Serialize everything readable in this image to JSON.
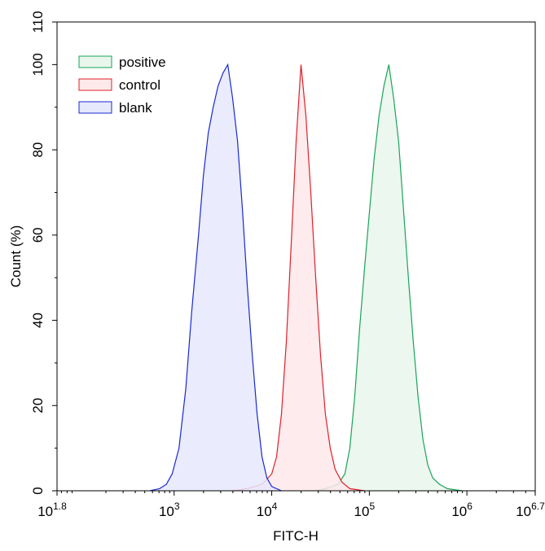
{
  "chart_data": {
    "type": "area",
    "title": "",
    "xlabel": "FITC-H",
    "ylabel": "Count (%)",
    "x_scale": "log10",
    "xlim_exponent": [
      1.8,
      6.7
    ],
    "ylim": [
      0,
      110
    ],
    "x_ticks": [
      {
        "base": "10",
        "exp": "1.8",
        "value": 1.8
      },
      {
        "base": "10",
        "exp": "3",
        "value": 3
      },
      {
        "base": "10",
        "exp": "4",
        "value": 4
      },
      {
        "base": "10",
        "exp": "5",
        "value": 5
      },
      {
        "base": "10",
        "exp": "6",
        "value": 6
      },
      {
        "base": "10",
        "exp": "6.7",
        "value": 6.7
      }
    ],
    "y_ticks": [
      "0",
      "20",
      "40",
      "60",
      "80",
      "100",
      "110"
    ],
    "legend_position": "top-left",
    "series": [
      {
        "name": "positive",
        "stroke": "#1aa35a",
        "fill": "#e8f6ec",
        "points": [
          [
            4.45,
            0
          ],
          [
            4.55,
            0.5
          ],
          [
            4.68,
            1.5
          ],
          [
            4.75,
            4
          ],
          [
            4.8,
            10
          ],
          [
            4.85,
            22
          ],
          [
            4.9,
            38
          ],
          [
            4.95,
            52
          ],
          [
            5.0,
            65
          ],
          [
            5.05,
            78
          ],
          [
            5.1,
            88
          ],
          [
            5.15,
            95
          ],
          [
            5.2,
            100
          ],
          [
            5.25,
            92
          ],
          [
            5.3,
            82
          ],
          [
            5.35,
            66
          ],
          [
            5.4,
            50
          ],
          [
            5.45,
            35
          ],
          [
            5.5,
            22
          ],
          [
            5.55,
            12
          ],
          [
            5.6,
            6
          ],
          [
            5.65,
            3
          ],
          [
            5.72,
            1.5
          ],
          [
            5.8,
            0.5
          ],
          [
            5.95,
            0
          ]
        ]
      },
      {
        "name": "control",
        "stroke": "#e0202a",
        "fill": "#fde8ea",
        "points": [
          [
            3.6,
            0
          ],
          [
            3.75,
            0.5
          ],
          [
            3.9,
            1.5
          ],
          [
            4.0,
            4
          ],
          [
            4.05,
            8
          ],
          [
            4.1,
            18
          ],
          [
            4.15,
            35
          ],
          [
            4.2,
            58
          ],
          [
            4.25,
            82
          ],
          [
            4.3,
            100
          ],
          [
            4.35,
            88
          ],
          [
            4.4,
            70
          ],
          [
            4.45,
            50
          ],
          [
            4.5,
            32
          ],
          [
            4.55,
            18
          ],
          [
            4.6,
            10
          ],
          [
            4.65,
            5
          ],
          [
            4.72,
            2
          ],
          [
            4.8,
            0.5
          ],
          [
            4.95,
            0
          ]
        ]
      },
      {
        "name": "blank",
        "stroke": "#1a2ad0",
        "fill": "#e6e8fb",
        "points": [
          [
            2.75,
            0
          ],
          [
            2.85,
            0.5
          ],
          [
            2.92,
            1.5
          ],
          [
            2.98,
            4
          ],
          [
            3.05,
            10
          ],
          [
            3.12,
            24
          ],
          [
            3.18,
            42
          ],
          [
            3.25,
            60
          ],
          [
            3.3,
            74
          ],
          [
            3.35,
            84
          ],
          [
            3.4,
            90
          ],
          [
            3.45,
            95
          ],
          [
            3.5,
            98
          ],
          [
            3.55,
            100
          ],
          [
            3.6,
            92
          ],
          [
            3.65,
            82
          ],
          [
            3.7,
            66
          ],
          [
            3.75,
            48
          ],
          [
            3.8,
            32
          ],
          [
            3.85,
            18
          ],
          [
            3.9,
            8
          ],
          [
            3.95,
            3
          ],
          [
            4.0,
            1
          ],
          [
            4.1,
            0
          ]
        ]
      }
    ]
  }
}
